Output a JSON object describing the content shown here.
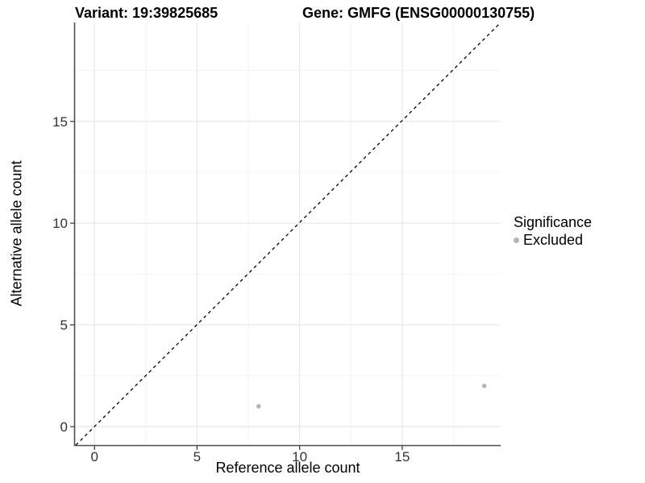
{
  "header": {
    "variant_title": "Variant: 19:39825685",
    "gene_title": "Gene: GMFG (ENSG00000130755)"
  },
  "chart_data": {
    "type": "scatter",
    "xlabel": "Reference allele count",
    "ylabel": "Alternative allele count",
    "xlim": [
      -0.95,
      19.8
    ],
    "ylim": [
      -0.91,
      19.86
    ],
    "x_ticks": [
      0,
      5,
      10,
      15
    ],
    "y_ticks": [
      0,
      5,
      10,
      15
    ],
    "x_minor_ticks": [
      2.5,
      7.5,
      12.5,
      17.5
    ],
    "y_minor_ticks": [
      2.5,
      7.5,
      12.5,
      17.5
    ],
    "grid": "major and minor, light grey on white",
    "legend_position": "right",
    "series": [
      {
        "name": "Excluded",
        "color": "#b5b5b5",
        "points": [
          {
            "x": 8,
            "y": 1
          },
          {
            "x": 19,
            "y": 2
          }
        ]
      }
    ],
    "reference_line": {
      "type": "identity",
      "slope": 1,
      "intercept": 0,
      "style": "dashed",
      "color": "#000000"
    }
  },
  "legend": {
    "title": "Significance",
    "items": [
      {
        "label": "Excluded",
        "color": "#b5b5b5"
      }
    ]
  },
  "colors": {
    "axis_line": "#4d4d4d",
    "tick_mark": "#333333",
    "tick_label": "#333333",
    "grid_major": "#e8e8e8",
    "grid_minor": "#f3f3f3",
    "point": "#b5b5b5",
    "background": "#ffffff"
  }
}
